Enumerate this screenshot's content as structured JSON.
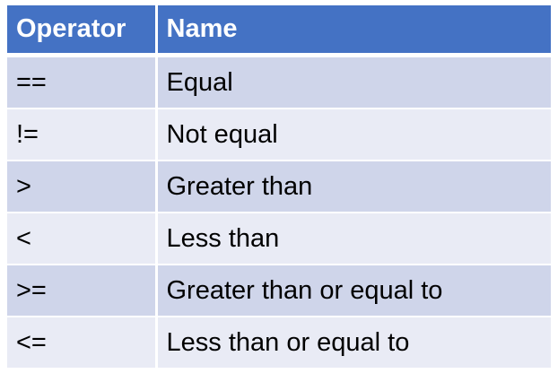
{
  "table": {
    "headers": [
      "Operator",
      "Name"
    ],
    "rows": [
      [
        "==",
        "Equal"
      ],
      [
        "!=",
        "Not equal"
      ],
      [
        ">",
        "Greater than"
      ],
      [
        "<",
        "Less than"
      ],
      [
        ">=",
        "Greater than or equal to"
      ],
      [
        "<=",
        "Less than or equal to"
      ]
    ]
  },
  "colors": {
    "header_bg": "#4472C4",
    "header_text": "#FFFFFF",
    "row_odd_bg": "#CFD5EA",
    "row_even_bg": "#E9EBF5"
  }
}
